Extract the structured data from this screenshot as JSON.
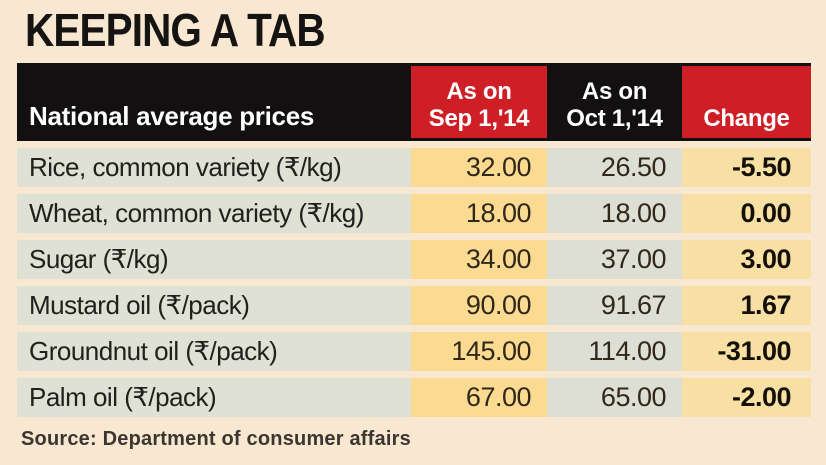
{
  "title": "KEEPING A TAB",
  "table": {
    "header": {
      "label": "National average prices",
      "sep_line1": "As on",
      "sep_line2": "Sep 1,'14",
      "oct_line1": "As on",
      "oct_line2": "Oct 1,'14",
      "change": "Change"
    },
    "rows": [
      {
        "label": "Rice, common variety (₹/kg)",
        "sep": "32.00",
        "oct": "26.50",
        "change": "-5.50"
      },
      {
        "label": "Wheat, common variety (₹/kg)",
        "sep": "18.00",
        "oct": "18.00",
        "change": "0.00"
      },
      {
        "label": "Sugar (₹/kg)",
        "sep": "34.00",
        "oct": "37.00",
        "change": "3.00"
      },
      {
        "label": "Mustard oil (₹/pack)",
        "sep": "90.00",
        "oct": "91.67",
        "change": "1.67"
      },
      {
        "label": "Groundnut oil (₹/pack)",
        "sep": "145.00",
        "oct": "114.00",
        "change": "-31.00"
      },
      {
        "label": "Palm oil (₹/pack)",
        "sep": "67.00",
        "oct": "65.00",
        "change": "-2.00"
      }
    ]
  },
  "source": "Source: Department of consumer affairs",
  "colors": {
    "page-bg": "#f8e7d1",
    "header-bg": "#121010",
    "accent-red": "#cf1f26",
    "label-bg": "#dfe1d4",
    "sep-bg": "#fbdb92",
    "oct-bg": "#dddfd4",
    "change-bg": "#f8e0a4",
    "header-text": "#ffffff",
    "number-text": "#32281a",
    "source-text": "#3b362f"
  },
  "chart_data": {
    "type": "table",
    "title": "KEEPING A TAB",
    "columns": [
      "National average prices",
      "As on Sep 1,'14",
      "As on Oct 1,'14",
      "Change"
    ],
    "categories": [
      "Rice, common variety (₹/kg)",
      "Wheat, common variety (₹/kg)",
      "Sugar (₹/kg)",
      "Mustard oil (₹/pack)",
      "Groundnut oil (₹/pack)",
      "Palm oil (₹/pack)"
    ],
    "series": [
      {
        "name": "As on Sep 1,'14",
        "values": [
          32.0,
          18.0,
          34.0,
          90.0,
          145.0,
          67.0
        ]
      },
      {
        "name": "As on Oct 1,'14",
        "values": [
          26.5,
          18.0,
          37.0,
          91.67,
          114.0,
          65.0
        ]
      },
      {
        "name": "Change",
        "values": [
          -5.5,
          0.0,
          3.0,
          1.67,
          -31.0,
          -2.0
        ]
      }
    ],
    "source": "Source: Department of consumer affairs"
  }
}
